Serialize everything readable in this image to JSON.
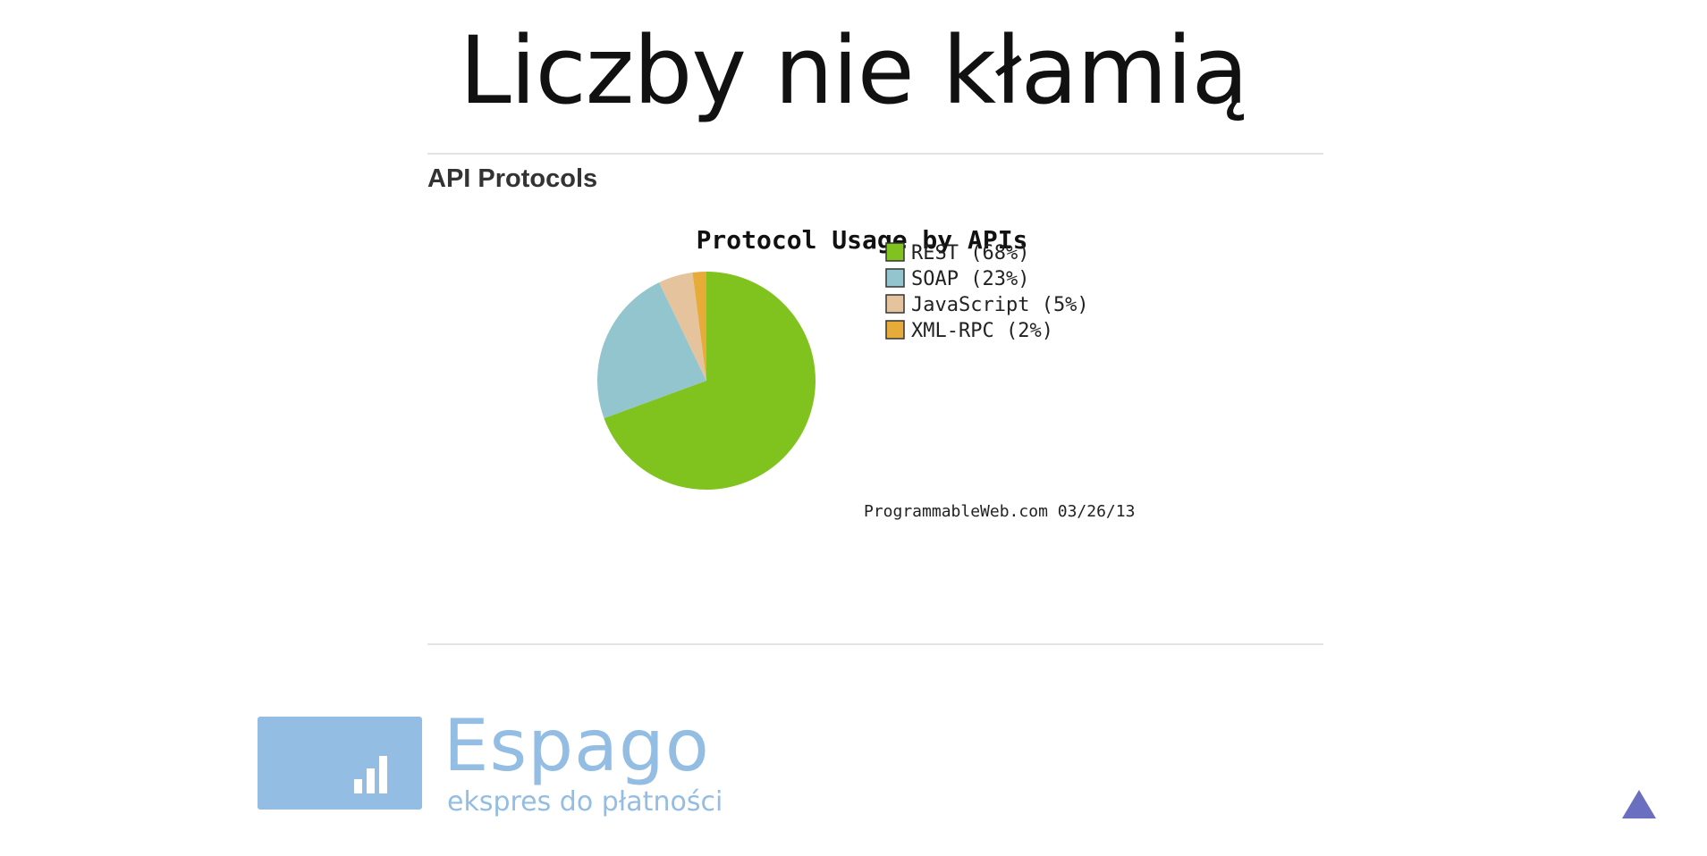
{
  "slide": {
    "title": "Liczby nie kłamią",
    "section_heading": "API Protocols"
  },
  "chart_data": {
    "type": "pie",
    "title": "Protocol Usage by APIs",
    "slices": [
      {
        "label": "REST (68%)",
        "value": 68,
        "color": "#80c31e"
      },
      {
        "label": "SOAP (23%)",
        "value": 23,
        "color": "#92c5cd"
      },
      {
        "label": "JavaScript (5%)",
        "value": 5,
        "color": "#e5c49d"
      },
      {
        "label": "XML-RPC (2%)",
        "value": 2,
        "color": "#e6ab38"
      }
    ],
    "legend_position": "right",
    "source": "ProgrammableWeb.com 03/26/13"
  },
  "brand": {
    "name": "Espago",
    "tagline": "ekspres do płatności",
    "color": "#93bde2"
  },
  "nav": {
    "up_icon": "triangle-up-icon",
    "color": "#6a6fc0"
  }
}
